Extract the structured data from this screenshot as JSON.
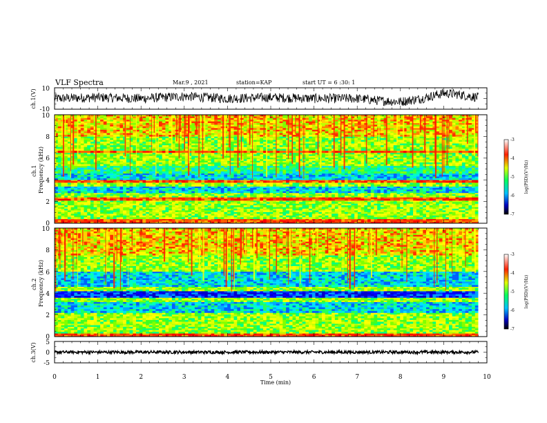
{
  "header": {
    "title": "VLF Spectra",
    "date": "Mar.9 , 2021",
    "station": "station=KAP",
    "start": "start UT = 6 :30: 1"
  },
  "chart_data": [
    {
      "type": "line",
      "panel": "ch1-waveform",
      "ylabel": "ch.1(V)",
      "ylim": [
        -10,
        10
      ],
      "yticks": [
        "10",
        "-10"
      ],
      "xlim": [
        0,
        10
      ],
      "x_extent": [
        0,
        9.8
      ],
      "series_shape": {
        "x": [
          0,
          1,
          2,
          3,
          4,
          5,
          6,
          7,
          7.5,
          8,
          8.5,
          9,
          9.3,
          9.8
        ],
        "y": [
          0,
          1,
          0,
          2,
          0,
          1,
          0,
          0,
          -2,
          -3,
          0,
          5,
          4,
          1
        ]
      }
    },
    {
      "type": "heatmap",
      "panel": "ch1-spectrogram",
      "ylabel": "ch.1\nFrequency (kHz)",
      "yticks": [
        "10",
        "8",
        "6",
        "4",
        "2",
        "0"
      ],
      "ylim": [
        0,
        10
      ],
      "xlim": [
        0,
        10
      ],
      "x_extent": [
        0,
        9.8
      ],
      "bands": [
        {
          "f": [
            0,
            0.4
          ],
          "level": "high"
        },
        {
          "f": [
            0.4,
            1.5
          ],
          "level": "mid"
        },
        {
          "f": [
            1.5,
            2.1
          ],
          "level": "mid"
        },
        {
          "f": [
            2.1,
            2.4
          ],
          "level": "high"
        },
        {
          "f": [
            2.4,
            2.8
          ],
          "level": "mid"
        },
        {
          "f": [
            2.8,
            3.4
          ],
          "level": "low"
        },
        {
          "f": [
            3.4,
            3.75
          ],
          "level": "mid"
        },
        {
          "f": [
            3.75,
            4.0
          ],
          "level": "high"
        },
        {
          "f": [
            4.0,
            4.6
          ],
          "level": "low"
        },
        {
          "f": [
            4.6,
            5.3
          ],
          "level": "midlow"
        },
        {
          "f": [
            5.3,
            6.5
          ],
          "level": "mid"
        },
        {
          "f": [
            6.5,
            6.7
          ],
          "level": "high"
        },
        {
          "f": [
            6.7,
            8.0
          ],
          "level": "mid"
        },
        {
          "f": [
            8.0,
            10.0
          ],
          "level": "midhigh"
        }
      ],
      "colorbar": {
        "label": "log(PSD)(V²/Hz)",
        "ticks": [
          "-3",
          "-4",
          "-5",
          "-6",
          "-7"
        ],
        "range": [
          -7,
          -3
        ]
      }
    },
    {
      "type": "heatmap",
      "panel": "ch2-spectrogram",
      "ylabel": "ch.2\nFrequency (kHz)",
      "yticks": [
        "10",
        "8",
        "6",
        "4",
        "2",
        "0"
      ],
      "ylim": [
        0,
        10
      ],
      "xlim": [
        0,
        10
      ],
      "x_extent": [
        0,
        9.8
      ],
      "bands": [
        {
          "f": [
            0,
            0.3
          ],
          "level": "high"
        },
        {
          "f": [
            0.3,
            1.2
          ],
          "level": "mid"
        },
        {
          "f": [
            1.2,
            2.2
          ],
          "level": "mid"
        },
        {
          "f": [
            2.2,
            3.2
          ],
          "level": "low"
        },
        {
          "f": [
            3.2,
            3.6
          ],
          "level": "mid"
        },
        {
          "f": [
            3.6,
            4.2
          ],
          "level": "verylow"
        },
        {
          "f": [
            4.2,
            4.6
          ],
          "level": "mid"
        },
        {
          "f": [
            4.6,
            6.0
          ],
          "level": "low"
        },
        {
          "f": [
            6.0,
            7.5
          ],
          "level": "mid"
        },
        {
          "f": [
            7.5,
            10.0
          ],
          "level": "midhigh"
        }
      ],
      "colorbar": {
        "label": "log(PSD)(V²/Hz)",
        "ticks": [
          "-3",
          "-4",
          "-5",
          "-6",
          "-7"
        ],
        "range": [
          -7,
          -3
        ]
      }
    },
    {
      "type": "line",
      "panel": "ch3-waveform",
      "ylabel": "ch.3(V)",
      "ylim": [
        -5,
        5
      ],
      "yticks": [
        "5",
        "0",
        "-5"
      ],
      "xlim": [
        0,
        10
      ],
      "x_extent": [
        0,
        9.8
      ],
      "series_shape": {
        "x": [
          0,
          9.8
        ],
        "y": [
          0,
          0
        ]
      }
    }
  ],
  "xaxis": {
    "label": "Time (min)",
    "ticks": [
      "0",
      "1",
      "2",
      "3",
      "4",
      "5",
      "6",
      "7",
      "8",
      "9",
      "10"
    ]
  },
  "colors": {
    "line": "#000000",
    "cmap": [
      "#000080",
      "#0000ff",
      "#00ffff",
      "#00ff00",
      "#ffff00",
      "#ff0000",
      "#ffffff"
    ]
  }
}
